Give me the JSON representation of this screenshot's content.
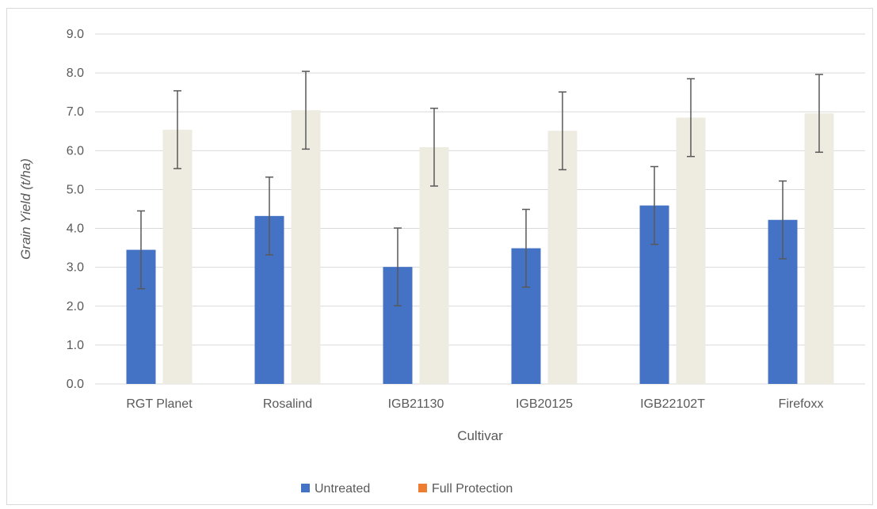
{
  "chart_data": {
    "type": "bar",
    "categories": [
      "RGT Planet",
      "Rosalind",
      "IGB21130",
      "IGB20125",
      "IGB22102T",
      "Firefoxx"
    ],
    "series": [
      {
        "name": "Untreated",
        "values": [
          3.45,
          4.32,
          3.01,
          3.49,
          4.59,
          4.22
        ],
        "error": [
          1.0,
          1.0,
          1.0,
          1.0,
          1.0,
          1.0
        ]
      },
      {
        "name": "Full Protection",
        "values": [
          6.54,
          7.04,
          6.09,
          6.51,
          6.85,
          6.96
        ],
        "error": [
          1.0,
          1.0,
          1.0,
          1.0,
          1.0,
          1.0
        ]
      }
    ],
    "xlabel": "Cultivar",
    "ylabel": "Grain Yield (t/ha)",
    "ylim": [
      0,
      9
    ],
    "yticks": [
      "0.0",
      "1.0",
      "2.0",
      "3.0",
      "4.0",
      "5.0",
      "6.0",
      "7.0",
      "8.0",
      "9.0"
    ],
    "grid": true,
    "legend": "bottom",
    "colors": {
      "untreated_bar": "#4472c4",
      "full_protection_bar": "#eeebe0",
      "full_protection_legend": "#ed7d31",
      "error_bar": "#595959",
      "gridline": "#d9d9d9"
    }
  }
}
